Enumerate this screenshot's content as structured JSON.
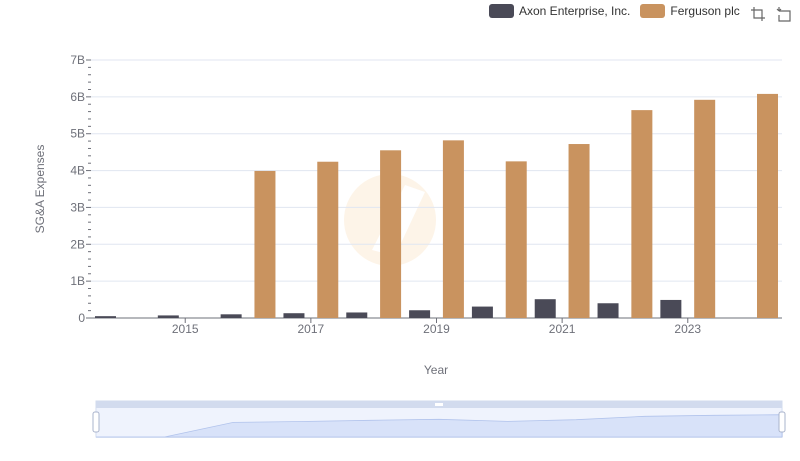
{
  "chart_data": {
    "type": "bar",
    "title": "",
    "xlabel": "Year",
    "ylabel": "SG&A Expenses",
    "ylim": [
      0,
      7000000000
    ],
    "y_ticks": [
      "0",
      "1B",
      "2B",
      "3B",
      "4B",
      "5B",
      "6B",
      "7B"
    ],
    "categories": [
      "2014",
      "2015",
      "2016",
      "2017",
      "2018",
      "2019",
      "2020",
      "2021",
      "2022",
      "2023",
      "2024"
    ],
    "x_tick_labels": [
      "2015",
      "2017",
      "2019",
      "2021",
      "2023"
    ],
    "series": [
      {
        "name": "Axon Enterprise, Inc.",
        "color": "#4a4a57",
        "values": [
          50000000,
          70000000,
          100000000,
          130000000,
          150000000,
          210000000,
          310000000,
          510000000,
          400000000,
          490000000,
          null
        ]
      },
      {
        "name": "Ferguson plc",
        "color": "#c9935f",
        "values": [
          null,
          null,
          3990000000,
          4240000000,
          4550000000,
          4820000000,
          4250000000,
          4720000000,
          5640000000,
          5920000000,
          6080000000
        ]
      }
    ],
    "legend_position": "top-right",
    "grid": true
  },
  "toolbox": {
    "zoom_icon": "data-zoom-icon",
    "reset_icon": "zoom-reset-icon"
  },
  "colors": {
    "grid": "#e0e6f1",
    "axis": "#6e7079",
    "slider_fill": "#dde6fb",
    "slider_border": "#aebbe0"
  }
}
